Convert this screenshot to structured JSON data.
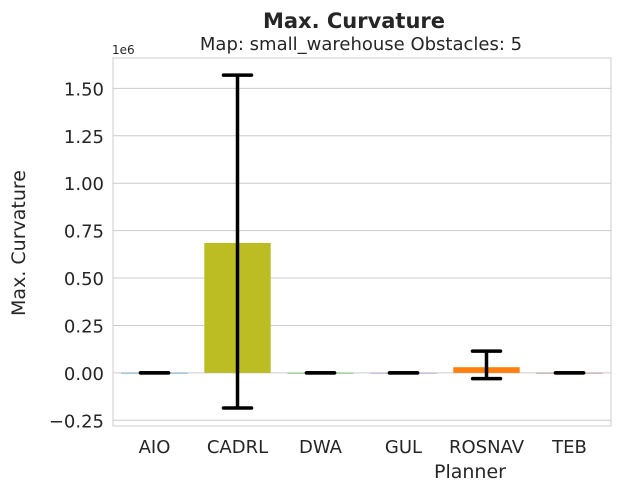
{
  "chart_data": {
    "type": "bar",
    "title": "Max. Curvature",
    "subtitle": "Map: small_warehouse Obstacles: 5",
    "xlabel": "Planner",
    "ylabel": "Max. Curvature",
    "y_offset_label": "1e6",
    "ylim": [
      -0.28,
      1.66
    ],
    "yticks": [
      -0.25,
      0.0,
      0.25,
      0.5,
      0.75,
      1.0,
      1.25,
      1.5
    ],
    "ytick_labels": [
      "−0.25",
      "0.00",
      "0.25",
      "0.50",
      "0.75",
      "1.00",
      "1.25",
      "1.50"
    ],
    "grid": true,
    "categories": [
      "AIO",
      "CADRL",
      "DWA",
      "GUL",
      "ROSNAV",
      "TEB"
    ],
    "values": [
      0.0,
      0.685,
      0.0,
      0.0,
      0.03,
      0.0
    ],
    "error_low": [
      0.0,
      -0.185,
      0.0,
      0.0,
      -0.03,
      0.0
    ],
    "error_high": [
      0.0,
      1.57,
      0.0,
      0.0,
      0.115,
      0.0
    ],
    "colors": [
      "#1f77b4",
      "#bcbd22",
      "#2ca02c",
      "#9467bd",
      "#ff7f0e",
      "#8c564b"
    ]
  }
}
